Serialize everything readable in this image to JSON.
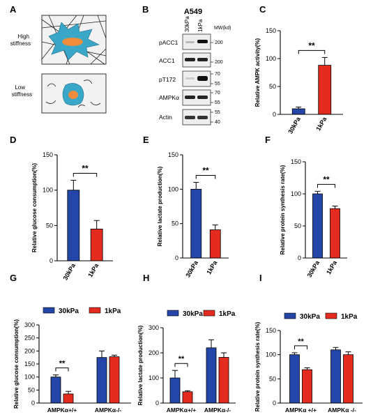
{
  "panels": {
    "A": {
      "letter": "A",
      "high_label_1": "High",
      "high_label_2": "stiffness",
      "low_label_1": "Low",
      "low_label_2": "stiffness"
    },
    "B": {
      "letter": "B",
      "cell_line": "A549",
      "lanes": [
        "30kPa",
        "1kPa"
      ],
      "mw_header": "MW(kd)",
      "rows": [
        {
          "label": "pACC1",
          "markers": [
            "200"
          ]
        },
        {
          "label": "ACC1",
          "markers": [
            "200"
          ]
        },
        {
          "label": "pT172",
          "markers": [
            "70",
            "55"
          ]
        },
        {
          "label": "AMPKα",
          "markers": [
            "70",
            "55"
          ]
        },
        {
          "label": "Actin",
          "markers": [
            "55",
            "40"
          ]
        }
      ]
    }
  },
  "colors": {
    "blue": "#2346a8",
    "red": "#e32b20",
    "cell": "#3aa7c9",
    "nucleus": "#f08c3c"
  },
  "chart_data": [
    {
      "id": "C",
      "letter": "C",
      "type": "bar",
      "ylabel": "Relative AMPK activity(%)",
      "ylim": [
        0,
        150
      ],
      "yticks": [
        0,
        50,
        100,
        150
      ],
      "categories": [
        "30kPa",
        "1kPa"
      ],
      "values": [
        10,
        88
      ],
      "errors": [
        3,
        14
      ],
      "colors": [
        "#2346a8",
        "#e32b20"
      ],
      "significance": "**"
    },
    {
      "id": "D",
      "letter": "D",
      "type": "bar",
      "ylabel": "Relative glucose consumption(%)",
      "ylim": [
        0,
        150
      ],
      "yticks": [
        0,
        50,
        100,
        150
      ],
      "categories": [
        "30kPa",
        "1kPa"
      ],
      "values": [
        100,
        45
      ],
      "errors": [
        14,
        12
      ],
      "colors": [
        "#2346a8",
        "#e32b20"
      ],
      "significance": "**"
    },
    {
      "id": "E",
      "letter": "E",
      "type": "bar",
      "ylabel": "Relative lactate production(%)",
      "ylim": [
        0,
        150
      ],
      "yticks": [
        0,
        50,
        100,
        150
      ],
      "categories": [
        "30kPa",
        "1kPa"
      ],
      "values": [
        100,
        41
      ],
      "errors": [
        10,
        7
      ],
      "colors": [
        "#2346a8",
        "#e32b20"
      ],
      "significance": "**"
    },
    {
      "id": "F",
      "letter": "F",
      "type": "bar",
      "ylabel": "Relative protein synthesis rate(%)",
      "ylim": [
        0,
        150
      ],
      "yticks": [
        0,
        50,
        100,
        150
      ],
      "categories": [
        "30kPa",
        "1kPa"
      ],
      "values": [
        100,
        77
      ],
      "errors": [
        4,
        4
      ],
      "colors": [
        "#2346a8",
        "#e32b20"
      ],
      "significance": "**"
    },
    {
      "id": "G",
      "letter": "G",
      "type": "bar",
      "ylabel": "Relative glucose consumption(%)",
      "ylim": [
        0,
        300
      ],
      "yticks": [
        0,
        50,
        100,
        150,
        200,
        250,
        300
      ],
      "categories": [
        "AMPKα+/+",
        "AMPKα-/-"
      ],
      "series": [
        {
          "name": "30kPa",
          "values": [
            100,
            175
          ],
          "errors": [
            8,
            25
          ],
          "color": "#2346a8"
        },
        {
          "name": "1kPa",
          "values": [
            35,
            178
          ],
          "errors": [
            10,
            6
          ],
          "color": "#e32b20"
        }
      ],
      "significance": "**"
    },
    {
      "id": "H",
      "letter": "H",
      "type": "bar",
      "ylabel": "Relative lactate production(%)",
      "ylim": [
        0,
        300
      ],
      "yticks": [
        0,
        100,
        200,
        300
      ],
      "categories": [
        "AMPKα+/+",
        "AMPKα-/-"
      ],
      "series": [
        {
          "name": "30kPa",
          "values": [
            100,
            220
          ],
          "errors": [
            30,
            32
          ],
          "color": "#2346a8"
        },
        {
          "name": "1kPa",
          "values": [
            45,
            182
          ],
          "errors": [
            4,
            18
          ],
          "color": "#e32b20"
        }
      ],
      "significance": "**"
    },
    {
      "id": "I",
      "letter": "I",
      "type": "bar",
      "ylabel": "Relative protein synthesis rate(%)",
      "ylim": [
        0,
        150
      ],
      "yticks": [
        0,
        50,
        100,
        150
      ],
      "categories": [
        "AMPKα +/+",
        "AMPKα -/-"
      ],
      "series": [
        {
          "name": "30kPa",
          "values": [
            100,
            110
          ],
          "errors": [
            4,
            5
          ],
          "color": "#2346a8"
        },
        {
          "name": "1kPa",
          "values": [
            69,
            100
          ],
          "errors": [
            4,
            6
          ],
          "color": "#e32b20"
        }
      ],
      "significance": "**"
    }
  ]
}
